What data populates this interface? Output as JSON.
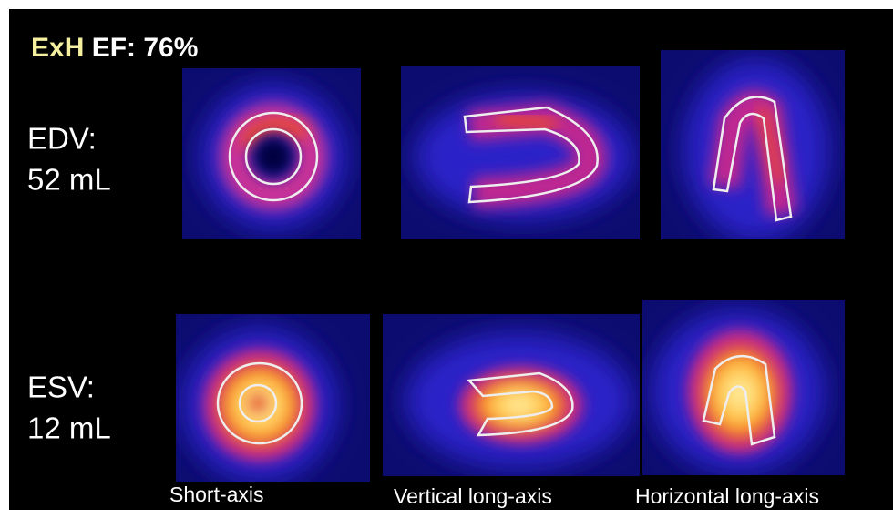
{
  "header": {
    "tag": "ExH",
    "value": "EF: 76%"
  },
  "rows": [
    {
      "label": "EDV:",
      "value": "52 mL"
    },
    {
      "label": "ESV:",
      "value": "12 mL"
    }
  ],
  "captions": [
    "Short-axis",
    "Vertical long-axis",
    "Horizontal long-axis"
  ]
}
